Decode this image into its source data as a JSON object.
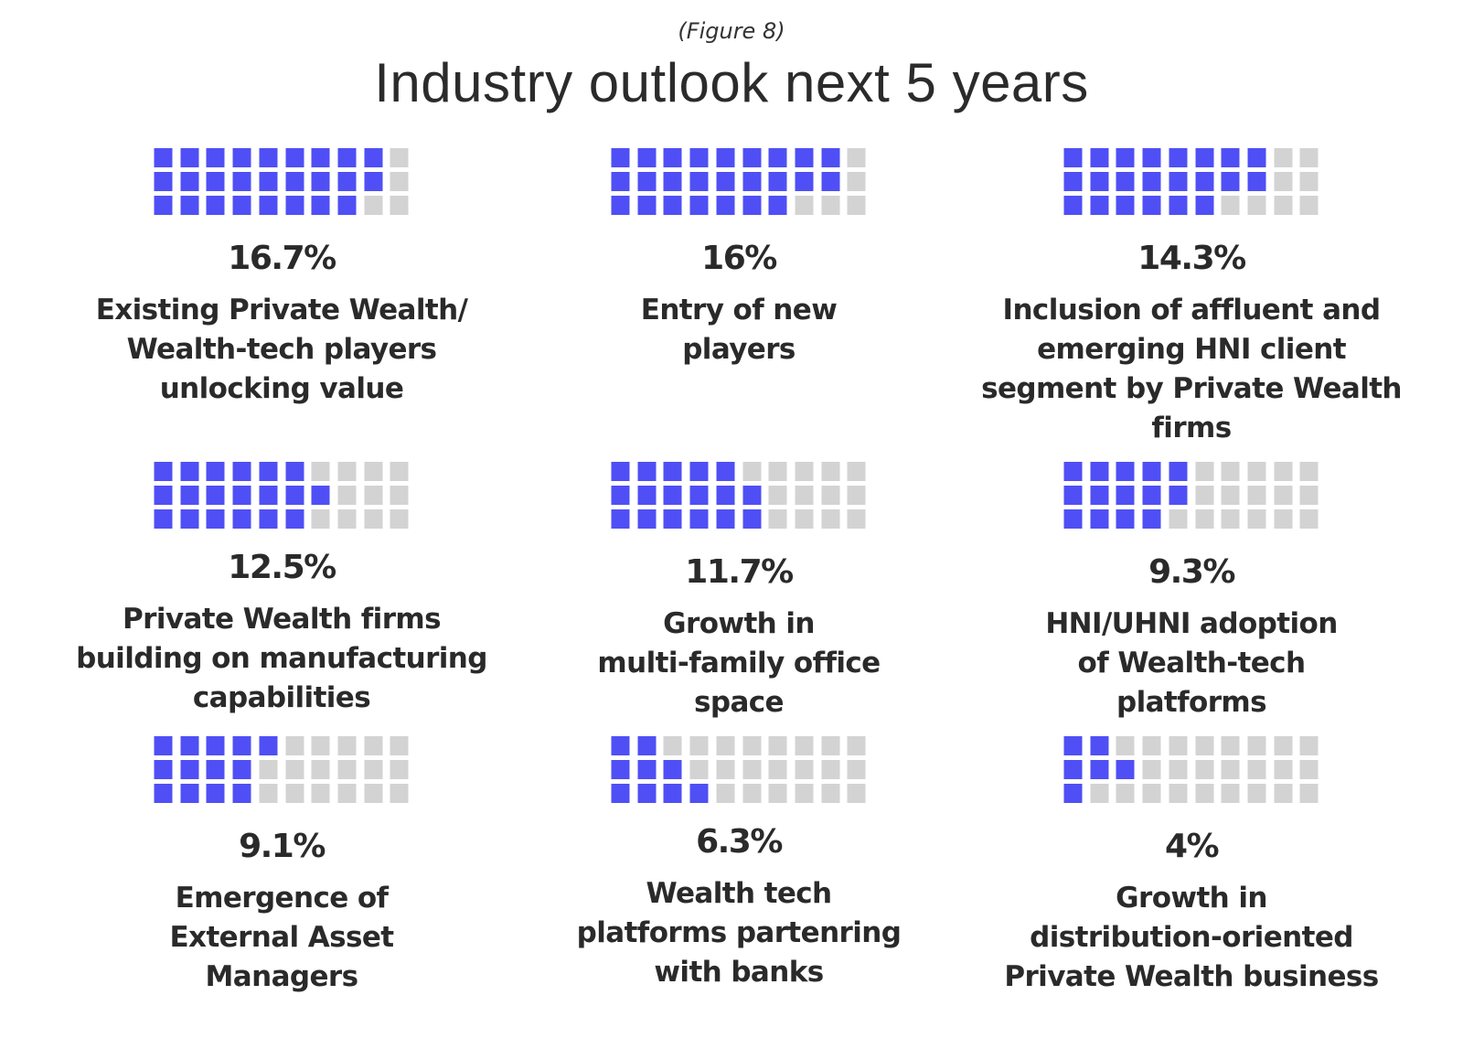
{
  "figure_label": "(Figure 8)",
  "title": "Industry outlook next 5 years",
  "colors": {
    "filled": "#4f4ff5",
    "empty": "#d3d3d3",
    "text": "#2a2a2a"
  },
  "chart_data": {
    "type": "waffle",
    "title": "Industry outlook next 5 years",
    "grid": {
      "rows": 3,
      "cols": 10
    },
    "items": [
      {
        "value_label": "16.7%",
        "value": 16.7,
        "label": "Existing Private Wealth/\nWealth-tech players\nunlocking value",
        "filled_per_row": [
          9,
          9,
          8
        ]
      },
      {
        "value_label": "16%",
        "value": 16,
        "label": "Entry of new\nplayers",
        "filled_per_row": [
          9,
          9,
          7
        ]
      },
      {
        "value_label": "14.3%",
        "value": 14.3,
        "label": "Inclusion of affluent and\nemerging HNI client\nsegment by Private Wealth\nfirms",
        "filled_per_row": [
          8,
          8,
          6
        ]
      },
      {
        "value_label": "12.5%",
        "value": 12.5,
        "label": "Private Wealth firms\nbuilding on manufacturing\ncapabilities",
        "filled_per_row": [
          6,
          7,
          6
        ]
      },
      {
        "value_label": "11.7%",
        "value": 11.7,
        "label": "Growth in\nmulti-family office\nspace",
        "filled_per_row": [
          5,
          6,
          6
        ]
      },
      {
        "value_label": "9.3%",
        "value": 9.3,
        "label": "HNI/UHNI adoption\nof Wealth-tech\nplatforms",
        "filled_per_row": [
          5,
          5,
          4
        ]
      },
      {
        "value_label": "9.1%",
        "value": 9.1,
        "label": "Emergence of\nExternal Asset\nManagers",
        "filled_per_row": [
          5,
          4,
          4
        ]
      },
      {
        "value_label": "6.3%",
        "value": 6.3,
        "label": "Wealth tech\nplatforms partenring\nwith banks",
        "filled_per_row": [
          2,
          3,
          4
        ]
      },
      {
        "value_label": "4%",
        "value": 4,
        "label": "Growth in\ndistribution-oriented\nPrivate Wealth business",
        "filled_per_row": [
          2,
          3,
          1
        ]
      }
    ]
  }
}
